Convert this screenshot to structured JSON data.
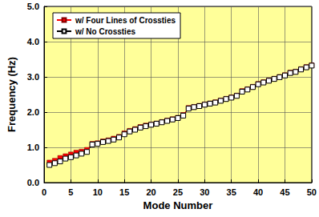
{
  "chart_data": {
    "type": "line",
    "x_label": "Mode Number",
    "y_label": "Frequency (Hz)",
    "x": [
      1,
      2,
      3,
      4,
      5,
      6,
      7,
      8,
      9,
      10,
      11,
      12,
      13,
      14,
      15,
      16,
      17,
      18,
      19,
      20,
      21,
      22,
      23,
      24,
      25,
      26,
      27,
      28,
      29,
      30,
      31,
      32,
      33,
      34,
      35,
      36,
      37,
      38,
      39,
      40,
      41,
      42,
      43,
      44,
      45,
      46,
      47,
      48,
      49,
      50
    ],
    "series": [
      {
        "name": "w/ Four Lines of Crossties",
        "color": "#ff0000",
        "marker": "square",
        "line_style": "solid",
        "values": [
          0.57,
          0.62,
          0.7,
          0.75,
          0.8,
          0.85,
          0.88,
          0.93,
          1.1,
          1.12,
          1.17,
          1.2,
          1.25,
          1.3,
          1.4,
          1.47,
          1.52,
          1.58,
          1.62,
          1.65,
          1.68,
          1.72,
          1.76,
          1.8,
          1.84,
          1.92,
          2.12,
          2.15,
          2.18,
          2.22,
          2.25,
          2.28,
          2.33,
          2.38,
          2.42,
          2.47,
          2.6,
          2.65,
          2.72,
          2.8,
          2.85,
          2.9,
          2.95,
          3.0,
          3.05,
          3.12,
          3.15,
          3.22,
          3.28,
          3.33
        ]
      },
      {
        "name": "w/ No Crossties",
        "color": "#000000",
        "marker": "open_square",
        "line_style": "solid",
        "values": [
          0.5,
          0.55,
          0.6,
          0.68,
          0.72,
          0.77,
          0.82,
          0.87,
          1.08,
          1.1,
          1.15,
          1.18,
          1.22,
          1.28,
          1.37,
          1.45,
          1.5,
          1.56,
          1.6,
          1.64,
          1.67,
          1.71,
          1.75,
          1.79,
          1.83,
          1.9,
          2.1,
          2.14,
          2.17,
          2.21,
          2.24,
          2.27,
          2.32,
          2.37,
          2.41,
          2.46,
          2.58,
          2.64,
          2.71,
          2.79,
          2.84,
          2.89,
          2.94,
          2.99,
          3.04,
          3.11,
          3.14,
          3.21,
          3.27,
          3.32
        ]
      }
    ],
    "xlim": [
      0,
      50
    ],
    "xticks": [
      0,
      5,
      10,
      15,
      20,
      25,
      30,
      35,
      40,
      45,
      50
    ],
    "ylim": [
      0,
      5
    ],
    "yticks": [
      {
        "value": 0,
        "label": "0.0"
      },
      {
        "value": 1,
        "label": "1.0"
      },
      {
        "value": 2,
        "label": "2.0"
      },
      {
        "value": 3,
        "label": "3.0"
      },
      {
        "value": 4,
        "label": "4.0"
      },
      {
        "value": 5,
        "label": "5.0"
      }
    ],
    "grid": true,
    "legend": "upper left"
  }
}
